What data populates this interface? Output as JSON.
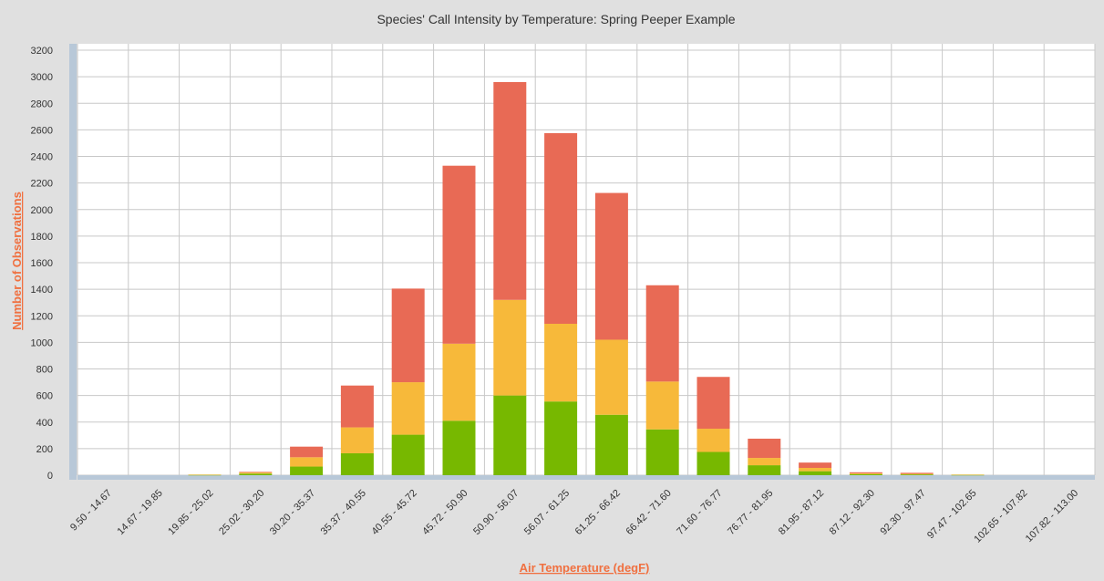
{
  "chart_data": {
    "type": "bar",
    "stacked": true,
    "title": "Species' Call Intensity by Temperature: Spring Peeper Example",
    "xlabel": "Air Temperature (degF)",
    "ylabel": "Number of Observations",
    "ylim": [
      0,
      3200
    ],
    "yticks": [
      0,
      200,
      400,
      600,
      800,
      1000,
      1200,
      1400,
      1600,
      1800,
      2000,
      2200,
      2400,
      2600,
      2800,
      3000,
      3200
    ],
    "grid": true,
    "categories": [
      "9.50 - 14.67",
      "14.67 - 19.85",
      "19.85 - 25.02",
      "25.02 - 30.20",
      "30.20 - 35.37",
      "35.37 - 40.55",
      "40.55 - 45.72",
      "45.72 - 50.90",
      "50.90 - 56.07",
      "56.07 - 61.25",
      "61.25 - 66.42",
      "66.42 - 71.60",
      "71.60 - 76.77",
      "76.77 - 81.95",
      "81.95 - 87.12",
      "87.12 - 92.30",
      "92.30 - 97.47",
      "97.47 - 102.65",
      "102.65 - 107.82",
      "107.82 - 113.00"
    ],
    "series": [
      {
        "color": "#77b800",
        "values": [
          0,
          0,
          2,
          12,
          65,
          165,
          305,
          410,
          600,
          555,
          455,
          345,
          175,
          75,
          30,
          8,
          6,
          2,
          0,
          0
        ]
      },
      {
        "color": "#f7b93a",
        "values": [
          0,
          0,
          3,
          8,
          70,
          195,
          395,
          580,
          720,
          585,
          565,
          360,
          175,
          55,
          25,
          6,
          4,
          3,
          0,
          0
        ]
      },
      {
        "color": "#e86a55",
        "values": [
          0,
          0,
          0,
          5,
          80,
          315,
          705,
          1340,
          1640,
          1435,
          1105,
          725,
          390,
          145,
          40,
          8,
          8,
          0,
          0,
          0
        ]
      }
    ],
    "colors": {
      "background": "#e0e0e0",
      "plot_background": "#ffffff",
      "grid": "#c8c8c8",
      "axis_bar": "#b8c8d8",
      "axis_title": "#f07040"
    }
  }
}
